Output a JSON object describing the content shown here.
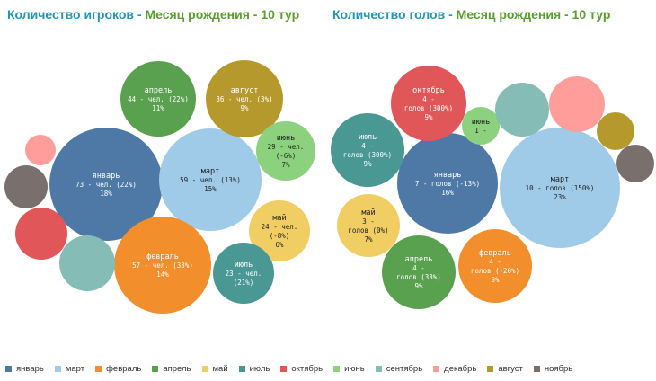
{
  "titles": {
    "left": {
      "part1": "Количество игроков - ",
      "part2": "Месяц рождения - 10 тур"
    },
    "right": {
      "part1": "Количество голов - ",
      "part2": "Месяц рождения - 10 тур"
    }
  },
  "colors": {
    "январь": "#4e79a7",
    "март": "#a0cbe8",
    "февраль": "#f28e2b",
    "апрель": "#59a14f",
    "май": "#f1ce63",
    "июль": "#499894",
    "октябрь": "#e15759",
    "июнь": "#8cd17d",
    "сентябрь": "#86bcb6",
    "декабрь": "#ff9d9a",
    "август": "#b6992d",
    "ноябрь": "#79706e"
  },
  "legend": [
    {
      "label": "январь",
      "color": "#4e79a7"
    },
    {
      "label": "март",
      "color": "#a0cbe8"
    },
    {
      "label": "февраль",
      "color": "#f28e2b"
    },
    {
      "label": "апрель",
      "color": "#59a14f"
    },
    {
      "label": "май",
      "color": "#f1ce63"
    },
    {
      "label": "июль",
      "color": "#499894"
    },
    {
      "label": "октябрь",
      "color": "#e15759"
    },
    {
      "label": "июнь",
      "color": "#8cd17d"
    },
    {
      "label": "сентябрь",
      "color": "#86bcb6"
    },
    {
      "label": "декабрь",
      "color": "#ff9d9a"
    },
    {
      "label": "август",
      "color": "#b6992d"
    },
    {
      "label": "ноябрь",
      "color": "#79706e"
    }
  ],
  "chart_data": [
    {
      "type": "bubble",
      "title": "Количество игроков - Месяц рождения - 10 тур",
      "items": [
        {
          "category": "январь",
          "value": 73,
          "change": "(22%)",
          "share": "18%",
          "label_lines": [
            "январь",
            "73 - чел. (22%)",
            "18%"
          ]
        },
        {
          "category": "март",
          "value": 59,
          "change": "(13%)",
          "share": "15%",
          "label_lines": [
            "март",
            "59 - чел. (13%)",
            "15%"
          ]
        },
        {
          "category": "февраль",
          "value": 57,
          "change": "(33%)",
          "share": "14%",
          "label_lines": [
            "февраль",
            "57 - чел. (33%)",
            "14%"
          ]
        },
        {
          "category": "апрель",
          "value": 44,
          "change": "(22%)",
          "share": "11%",
          "label_lines": [
            "апрель",
            "44 - чел. (22%)",
            "11%"
          ]
        },
        {
          "category": "август",
          "value": 36,
          "change": "(3%)",
          "share": "9%",
          "label_lines": [
            "август",
            "36 - чел. (3%)",
            "9%"
          ]
        },
        {
          "category": "июнь",
          "value": 29,
          "change": "(-6%)",
          "share": "7%",
          "label_lines": [
            "июнь",
            "29 - чел.",
            "(-6%)",
            "7%"
          ]
        },
        {
          "category": "май",
          "value": 24,
          "change": "(-8%)",
          "share": "6%",
          "label_lines": [
            "май",
            "24 - чел.",
            "(-8%)",
            "6%"
          ]
        },
        {
          "category": "июль",
          "value": 23,
          "change": "(21%)",
          "share": "",
          "label_lines": [
            "июль",
            "23 - чел.",
            "(21%)"
          ]
        },
        {
          "category": "сентябрь",
          "value": null,
          "label_lines": []
        },
        {
          "category": "октябрь",
          "value": null,
          "label_lines": []
        },
        {
          "category": "ноябрь",
          "value": null,
          "label_lines": []
        },
        {
          "category": "декабрь",
          "value": null,
          "label_lines": []
        }
      ]
    },
    {
      "type": "bubble",
      "title": "Количество голов - Месяц рождения - 10 тур",
      "items": [
        {
          "category": "март",
          "value": 10,
          "change": "(150%)",
          "share": "23%",
          "label_lines": [
            "март",
            "10 - голов (150%)",
            "23%"
          ]
        },
        {
          "category": "январь",
          "value": 7,
          "change": "(-13%)",
          "share": "16%",
          "label_lines": [
            "январь",
            "7 - голов (-13%)",
            "16%"
          ]
        },
        {
          "category": "октябрь",
          "value": 4,
          "change": "(300%)",
          "share": "9%",
          "label_lines": [
            "октябрь",
            "4 -",
            "голов (300%)",
            "9%"
          ]
        },
        {
          "category": "июль",
          "value": 4,
          "change": "(300%)",
          "share": "9%",
          "label_lines": [
            "июль",
            "4 -",
            "голов (300%)",
            "9%"
          ]
        },
        {
          "category": "апрель",
          "value": 4,
          "change": "(33%)",
          "share": "9%",
          "label_lines": [
            "апрель",
            "4 -",
            "голов (33%)",
            "9%"
          ]
        },
        {
          "category": "февраль",
          "value": 4,
          "change": "(-20%)",
          "share": "9%",
          "label_lines": [
            "февраль",
            "4 -",
            "голов (-20%)",
            "9%"
          ]
        },
        {
          "category": "май",
          "value": 3,
          "change": "(0%)",
          "share": "7%",
          "label_lines": [
            "май",
            "3 -",
            "голов (0%)",
            "7%"
          ]
        },
        {
          "category": "июнь",
          "value": 1,
          "change": "",
          "share": "",
          "label_lines": [
            "июнь",
            "1 -"
          ]
        },
        {
          "category": "сентябрь",
          "value": null,
          "label_lines": []
        },
        {
          "category": "декабрь",
          "value": null,
          "label_lines": []
        },
        {
          "category": "август",
          "value": null,
          "label_lines": []
        },
        {
          "category": "ноябрь",
          "value": null,
          "label_lines": []
        }
      ]
    }
  ]
}
